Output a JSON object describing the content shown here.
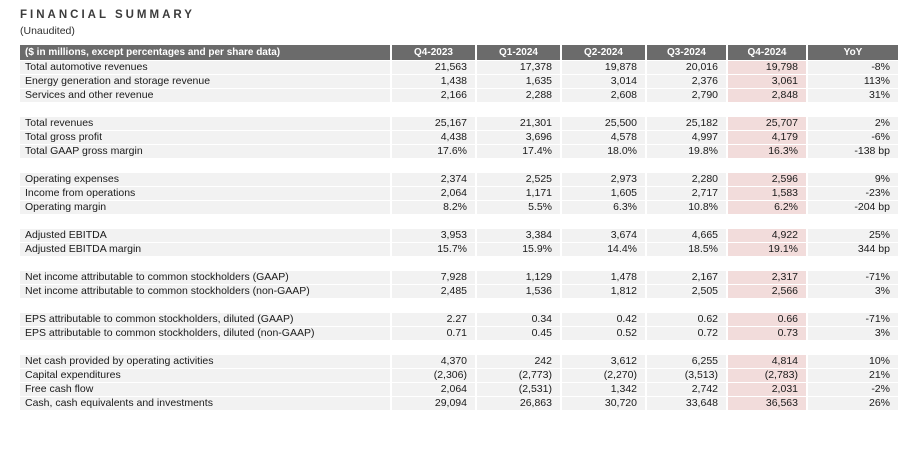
{
  "title": "FINANCIAL SUMMARY",
  "subtitle": "(Unaudited)",
  "colors": {
    "header_bg": "#6b6b6b",
    "header_text": "#ffffff",
    "row_bg": "#f2f2f2",
    "highlight_bg": "#f2dcdb",
    "body_text": "#1a1a1a"
  },
  "table": {
    "label_header": "($ in millions, except percentages and per share data)",
    "columns": [
      "Q4-2023",
      "Q1-2024",
      "Q2-2024",
      "Q3-2024",
      "Q4-2024",
      "YoY"
    ],
    "highlight_column": "Q4-2024",
    "highlight_column_index": 4,
    "groups": [
      {
        "rows": [
          {
            "label": "Total automotive revenues",
            "values": [
              "21,563",
              "17,378",
              "19,878",
              "20,016",
              "19,798",
              "-8%"
            ]
          },
          {
            "label": "Energy generation and storage revenue",
            "values": [
              "1,438",
              "1,635",
              "3,014",
              "2,376",
              "3,061",
              "113%"
            ]
          },
          {
            "label": "Services and other revenue",
            "values": [
              "2,166",
              "2,288",
              "2,608",
              "2,790",
              "2,848",
              "31%"
            ]
          }
        ]
      },
      {
        "rows": [
          {
            "label": "Total revenues",
            "values": [
              "25,167",
              "21,301",
              "25,500",
              "25,182",
              "25,707",
              "2%"
            ]
          },
          {
            "label": "Total gross profit",
            "values": [
              "4,438",
              "3,696",
              "4,578",
              "4,997",
              "4,179",
              "-6%"
            ]
          },
          {
            "label": "Total GAAP gross margin",
            "values": [
              "17.6%",
              "17.4%",
              "18.0%",
              "19.8%",
              "16.3%",
              "-138 bp"
            ]
          }
        ]
      },
      {
        "rows": [
          {
            "label": "Operating expenses",
            "values": [
              "2,374",
              "2,525",
              "2,973",
              "2,280",
              "2,596",
              "9%"
            ]
          },
          {
            "label": "Income from operations",
            "values": [
              "2,064",
              "1,171",
              "1,605",
              "2,717",
              "1,583",
              "-23%"
            ]
          },
          {
            "label": "Operating margin",
            "values": [
              "8.2%",
              "5.5%",
              "6.3%",
              "10.8%",
              "6.2%",
              "-204 bp"
            ]
          }
        ]
      },
      {
        "rows": [
          {
            "label": "Adjusted EBITDA",
            "values": [
              "3,953",
              "3,384",
              "3,674",
              "4,665",
              "4,922",
              "25%"
            ]
          },
          {
            "label": "Adjusted EBITDA margin",
            "values": [
              "15.7%",
              "15.9%",
              "14.4%",
              "18.5%",
              "19.1%",
              "344 bp"
            ]
          }
        ]
      },
      {
        "rows": [
          {
            "label": "Net income attributable to common stockholders (GAAP)",
            "values": [
              "7,928",
              "1,129",
              "1,478",
              "2,167",
              "2,317",
              "-71%"
            ]
          },
          {
            "label": "Net income attributable to common stockholders (non-GAAP)",
            "values": [
              "2,485",
              "1,536",
              "1,812",
              "2,505",
              "2,566",
              "3%"
            ]
          }
        ]
      },
      {
        "rows": [
          {
            "label": "EPS attributable to common stockholders, diluted (GAAP)",
            "values": [
              "2.27",
              "0.34",
              "0.42",
              "0.62",
              "0.66",
              "-71%"
            ]
          },
          {
            "label": "EPS attributable to common stockholders, diluted (non-GAAP)",
            "values": [
              "0.71",
              "0.45",
              "0.52",
              "0.72",
              "0.73",
              "3%"
            ]
          }
        ]
      },
      {
        "rows": [
          {
            "label": "Net cash provided by operating activities",
            "values": [
              "4,370",
              "242",
              "3,612",
              "6,255",
              "4,814",
              "10%"
            ]
          },
          {
            "label": "Capital expenditures",
            "values": [
              "(2,306)",
              "(2,773)",
              "(2,270)",
              "(3,513)",
              "(2,783)",
              "21%"
            ]
          },
          {
            "label": "Free cash flow",
            "values": [
              "2,064",
              "(2,531)",
              "1,342",
              "2,742",
              "2,031",
              "-2%"
            ]
          },
          {
            "label": "Cash, cash equivalents and investments",
            "values": [
              "29,094",
              "26,863",
              "30,720",
              "33,648",
              "36,563",
              "26%"
            ]
          }
        ]
      }
    ]
  }
}
